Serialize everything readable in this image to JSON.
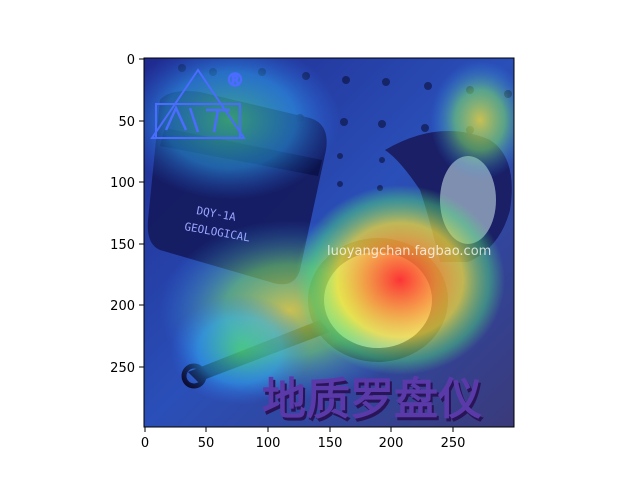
{
  "image": {
    "subject": "Compass photograph with class activation heatmap overlay",
    "logo_mark": "®",
    "watermark": "luoyangchan.fagbao.com",
    "caption": "地质罗盘仪",
    "case_label_line1": "DQY-1A",
    "case_label_line2": "GEOLOGICAL"
  },
  "axes": {
    "x_ticks": [
      "0",
      "50",
      "100",
      "150",
      "200",
      "250"
    ],
    "y_ticks": [
      "0",
      "50",
      "100",
      "150",
      "200",
      "250"
    ]
  },
  "colors": {
    "heat_hot": "#ff3a2a",
    "heat_warm": "#ffdd33",
    "heat_mid": "#3fdc6a",
    "heat_cool": "#2a7cff",
    "heat_cold": "#1a1c8c",
    "logo": "#4b6cff",
    "caption": "#5a3aa8"
  }
}
